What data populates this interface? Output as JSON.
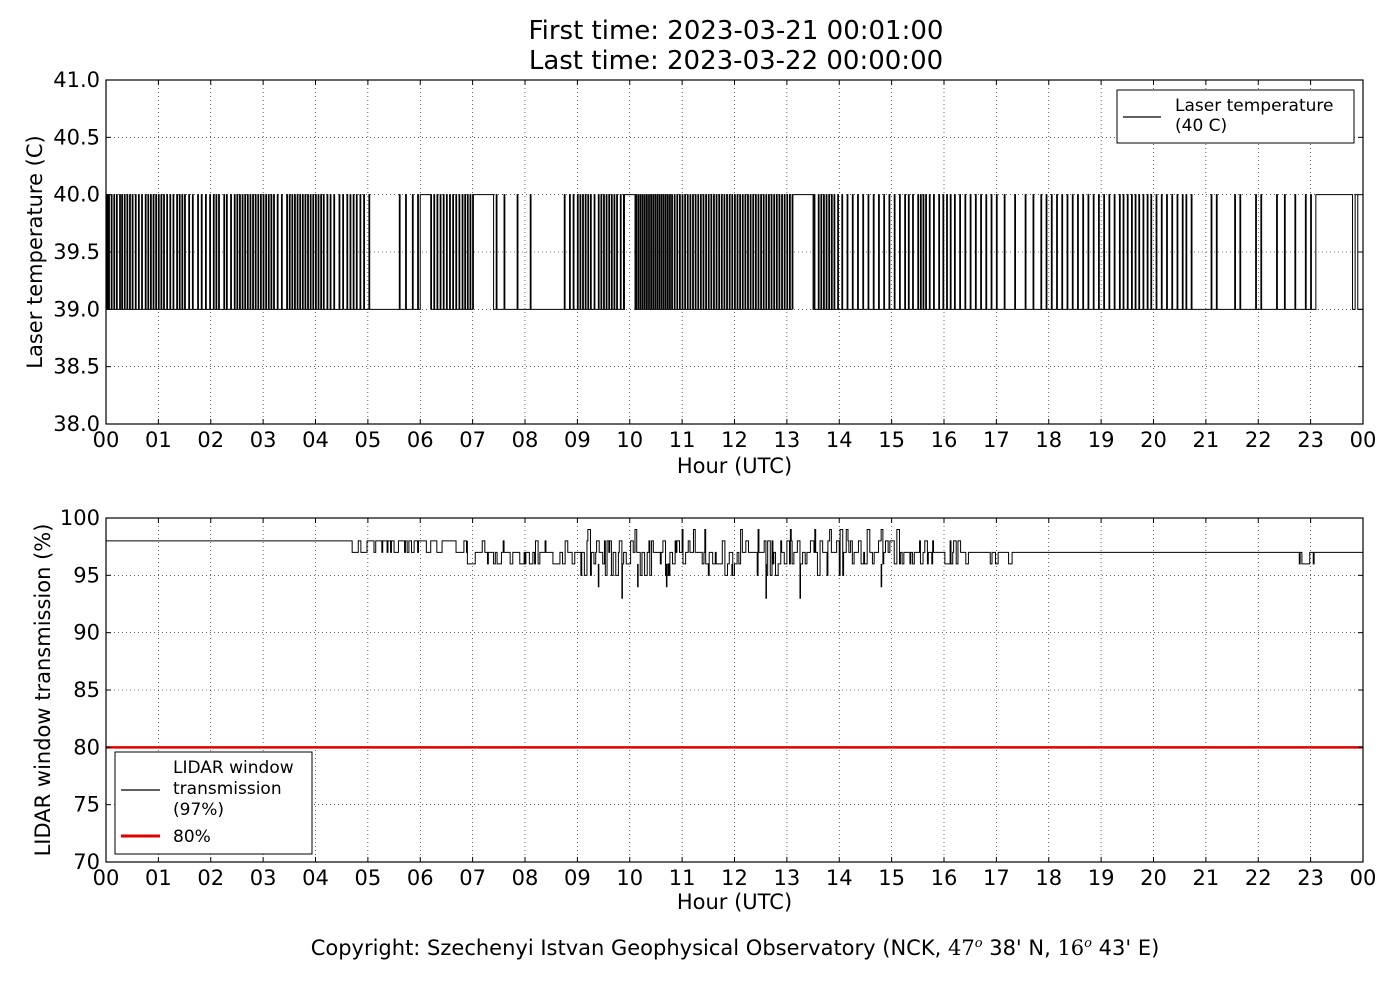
{
  "header": {
    "title_line1": "First time: 2023-03-21 00:01:00",
    "title_line2": "Last time: 2023-03-22 00:00:00"
  },
  "footer": {
    "copyright_prefix": "Copyright: Szechenyi Istvan Geophysical Observatory (NCK, ",
    "lat_deg": "47",
    "lat_rest": " 38' N, ",
    "lon_deg": "16",
    "lon_rest": " 43' E)",
    "degree_symbol": "o"
  },
  "chart_data": [
    {
      "type": "line",
      "xlabel": "Hour (UTC)",
      "ylabel": "Laser temperature (C)",
      "xlim": [
        0,
        24
      ],
      "ylim": [
        38.0,
        41.0
      ],
      "x_ticks": [
        "00",
        "01",
        "02",
        "03",
        "04",
        "05",
        "06",
        "07",
        "08",
        "09",
        "10",
        "11",
        "12",
        "13",
        "14",
        "15",
        "16",
        "17",
        "18",
        "19",
        "20",
        "21",
        "22",
        "23",
        "00"
      ],
      "y_ticks": [
        "38.0",
        "38.5",
        "39.0",
        "39.5",
        "40.0",
        "40.5",
        "41.0"
      ],
      "grid": true,
      "legend_position": "top-right",
      "series": [
        {
          "name": "Laser temperature\n(40 C)",
          "color": "#000000",
          "baseline": 39.0,
          "pulse_value": 40.0,
          "pulse_x": [
            0.02,
            0.05,
            0.1,
            0.15,
            0.2,
            0.26,
            0.3,
            0.35,
            0.4,
            0.45,
            0.5,
            0.56,
            0.62,
            0.68,
            0.75,
            0.8,
            0.85,
            0.9,
            0.95,
            1.0,
            1.05,
            1.1,
            1.16,
            1.22,
            1.28,
            1.35,
            1.4,
            1.45,
            1.5,
            1.58,
            1.65,
            1.75,
            1.82,
            1.9,
            1.98,
            2.05,
            2.1,
            2.15,
            2.25,
            2.3,
            2.38,
            2.45,
            2.5,
            2.55,
            2.6,
            2.65,
            2.7,
            2.75,
            2.8,
            2.85,
            2.9,
            2.95,
            3.0,
            3.05,
            3.1,
            3.15,
            3.2,
            3.27,
            3.35,
            3.45,
            3.5,
            3.55,
            3.6,
            3.65,
            3.7,
            3.75,
            3.8,
            3.85,
            3.9,
            3.95,
            4.0,
            4.05,
            4.1,
            4.15,
            4.22,
            4.28,
            4.35,
            4.45,
            4.52,
            4.6,
            4.66,
            4.72,
            4.78,
            4.85,
            4.92,
            5.02,
            5.6,
            5.72,
            5.85,
            5.95,
            6.02,
            6.08,
            6.15,
            6.2,
            6.26,
            6.32,
            6.38,
            6.44,
            6.5,
            6.56,
            6.62,
            6.68,
            6.74,
            6.8,
            6.85,
            6.9,
            6.95,
            7.0,
            7.05,
            7.45,
            7.6,
            7.85,
            8.1,
            8.75,
            8.85,
            8.92,
            9.0,
            9.05,
            9.1,
            9.15,
            9.2,
            9.25,
            9.32,
            9.4,
            9.45,
            9.5,
            9.55,
            9.6,
            9.65,
            9.7,
            9.75,
            9.82,
            9.88,
            9.92,
            9.96,
            10.0,
            10.04,
            10.08,
            10.12,
            10.16,
            10.2,
            10.24,
            10.28,
            10.32,
            10.36,
            10.4,
            10.44,
            10.48,
            10.52,
            10.56,
            10.6,
            10.64,
            10.68,
            10.72,
            10.76,
            10.8,
            10.85,
            10.9,
            10.95,
            11.0,
            11.05,
            11.1,
            11.15,
            11.2,
            11.25,
            11.3,
            11.35,
            11.4,
            11.45,
            11.5,
            11.55,
            11.6,
            11.65,
            11.7,
            11.75,
            11.8,
            11.85,
            11.9,
            11.95,
            12.0,
            12.05,
            12.1,
            12.15,
            12.2,
            12.25,
            12.3,
            12.35,
            12.4,
            12.45,
            12.5,
            12.55,
            12.6,
            12.65,
            12.7,
            12.75,
            12.8,
            12.85,
            12.9,
            12.95,
            13.0,
            13.05,
            13.1,
            13.15,
            13.22,
            13.3,
            13.38,
            13.45,
            13.52,
            13.6,
            13.65,
            13.7,
            13.75,
            13.8,
            13.85,
            13.9,
            13.97,
            14.05,
            14.15,
            14.25,
            14.35,
            14.45,
            14.55,
            14.65,
            14.75,
            14.85,
            14.95,
            15.05,
            15.15,
            15.25,
            15.32,
            15.4,
            15.5,
            15.55,
            15.6,
            15.65,
            15.72,
            15.8,
            15.9,
            15.98,
            16.05,
            16.12,
            16.2,
            16.3,
            16.4,
            16.5,
            16.6,
            16.7,
            16.8,
            16.9,
            17.0,
            17.15,
            17.35,
            17.55,
            17.7,
            17.85,
            17.95,
            18.05,
            18.15,
            18.25,
            18.35,
            18.45,
            18.55,
            18.65,
            18.75,
            18.85,
            18.95,
            19.05,
            19.15,
            19.25,
            19.35,
            19.42,
            19.5,
            19.58,
            19.65,
            19.72,
            19.8,
            19.88,
            19.95,
            20.05,
            20.15,
            20.25,
            20.35,
            20.45,
            20.55,
            20.62,
            20.72,
            21.1,
            21.2,
            21.55,
            21.65,
            21.95,
            22.05,
            22.35,
            22.5,
            22.7,
            22.9,
            23.0
          ],
          "pulse_width_hours": 0.015,
          "plateau_ranges": [
            [
              6.0,
              6.2
            ],
            [
              7.0,
              7.4
            ],
            [
              9.9,
              10.1
            ],
            [
              13.1,
              13.5
            ],
            [
              23.1,
              23.8
            ]
          ],
          "final_value": 39.0
        }
      ]
    },
    {
      "type": "line",
      "xlabel": "Hour (UTC)",
      "ylabel": "LIDAR window transmission (%)",
      "xlim": [
        0,
        24
      ],
      "ylim": [
        70,
        100
      ],
      "x_ticks": [
        "00",
        "01",
        "02",
        "03",
        "04",
        "05",
        "06",
        "07",
        "08",
        "09",
        "10",
        "11",
        "12",
        "13",
        "14",
        "15",
        "16",
        "17",
        "18",
        "19",
        "20",
        "21",
        "22",
        "23",
        "00"
      ],
      "y_ticks": [
        "70",
        "75",
        "80",
        "85",
        "90",
        "95",
        "100"
      ],
      "grid": true,
      "legend_position": "bottom-left",
      "series": [
        {
          "name": "LIDAR window\ntransmission\n(97%)",
          "color": "#000000",
          "segments": [
            {
              "x_start": 0.0,
              "x_end": 4.7,
              "value": 98,
              "noise": 0
            },
            {
              "x_start": 4.7,
              "x_end": 6.9,
              "value": 98,
              "noise": 1
            },
            {
              "x_start": 6.9,
              "x_end": 9.0,
              "value": 97,
              "noise": 1
            },
            {
              "x_start": 9.0,
              "x_end": 15.3,
              "value": 97,
              "noise": 2
            },
            {
              "x_start": 15.3,
              "x_end": 17.3,
              "value": 97,
              "noise": 1
            },
            {
              "x_start": 17.3,
              "x_end": 22.6,
              "value": 97,
              "noise": 0
            },
            {
              "x_start": 22.6,
              "x_end": 23.1,
              "value": 97,
              "noise": 1
            },
            {
              "x_start": 23.1,
              "x_end": 24.0,
              "value": 97,
              "noise": 0
            }
          ],
          "min_dips": [
            [
              9.4,
              94
            ],
            [
              9.85,
              93
            ],
            [
              10.15,
              94
            ],
            [
              10.7,
              94
            ],
            [
              11.95,
              95
            ],
            [
              12.6,
              93
            ],
            [
              13.25,
              93
            ],
            [
              14.8,
              94
            ]
          ]
        },
        {
          "name": "80%",
          "color": "#e00000",
          "constant": 80
        }
      ]
    }
  ]
}
